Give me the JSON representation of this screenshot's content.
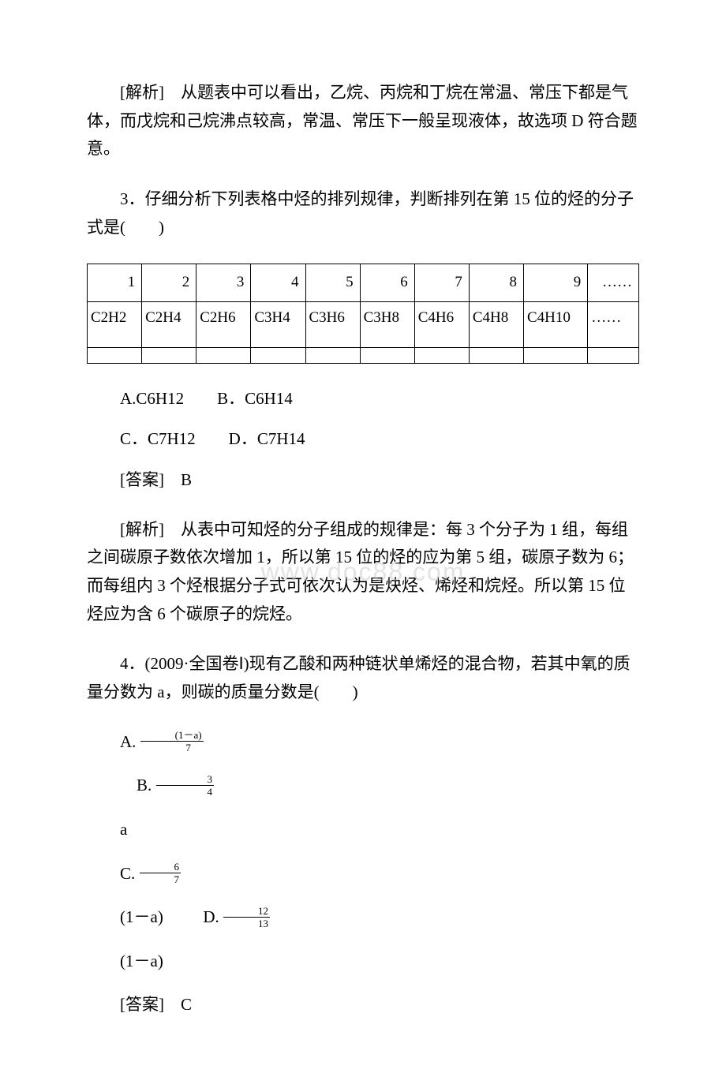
{
  "analysis_q2": "[解析]　从题表中可以看出，乙烷、丙烷和丁烷在常温、常压下都是气体，而戊烷和己烷沸点较高，常温、常压下一般呈现液体，故选项 D 符合题意。",
  "q3": {
    "stem": "3．仔细分析下列表格中烃的排列规律，判断排列在第 15 位的烃的分子式是(　　)",
    "table": {
      "row1": [
        "1",
        "2",
        "3",
        "4",
        "5",
        "6",
        "7",
        "8",
        "9",
        "……"
      ],
      "row2": [
        "C2H2",
        "C2H4",
        "C2H6",
        "C3H4",
        "C3H6",
        "C3H8",
        "C4H6",
        "C4H8",
        "C4H10",
        "……"
      ]
    },
    "options_line1": "A.C6H12　　B．C6H14",
    "options_line2": "C．C7H12　　D．C7H14",
    "answer": "[答案]　B",
    "analysis": "[解析]　从表中可知烃的分子组成的规律是：每 3 个分子为 1 组，每组之间碳原子数依次增加 1，所以第 15 位的烃的应为第 5 组，碳原子数为 6；而每组内 3 个烃根据分子式可依次认为是炔烃、烯烃和烷烃。所以第 15 位烃应为含 6 个碳原子的烷烃。"
  },
  "q4": {
    "stem": "4．(2009·全国卷Ⅰ)现有乙酸和两种链状单烯烃的混合物，若其中氧的质量分数为 a，则碳的质量分数是(　　)",
    "optionA_prefix": "A.",
    "optionA_num": "(1－a)",
    "optionA_den": "7",
    "optionB_prefix": "B.",
    "optionB_num": "3",
    "optionB_den": "4",
    "var_a1": "a",
    "optionC_prefix": "C.",
    "optionC_num": "6",
    "optionC_den": "7",
    "optionC_tail": "(1－a)",
    "optionD_prefix": "D.",
    "optionD_num": "12",
    "optionD_den": "13",
    "var_a2": "(1－a)",
    "answer": "[答案]　C"
  },
  "watermark": "www.doc88.com",
  "colors": {
    "background": "#ffffff",
    "text": "#000000",
    "border": "#000000",
    "watermark": "rgba(200,200,200,0.5)"
  }
}
